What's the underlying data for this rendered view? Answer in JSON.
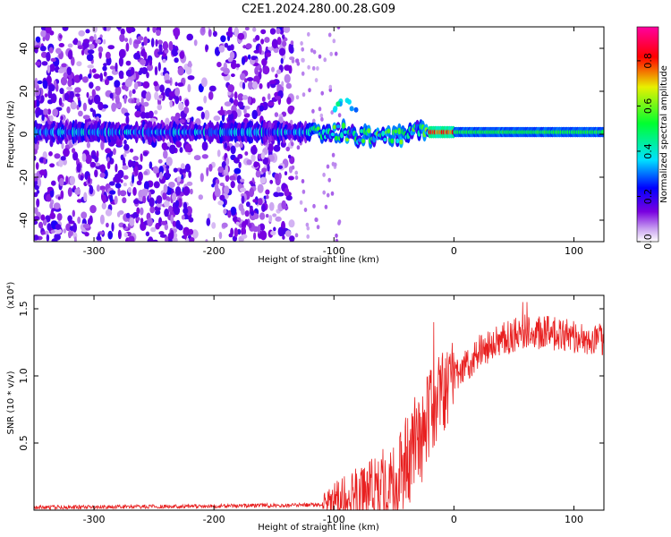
{
  "title": "C2E1.2024.280.00.28.G09",
  "chart_data": [
    {
      "type": "heatmap",
      "xlabel": "Height of straight line (km)",
      "ylabel": "Frequency (Hz)",
      "xlim": [
        -350,
        125
      ],
      "ylim": [
        -50,
        50
      ],
      "xticks": [
        -300,
        -200,
        -100,
        0,
        100
      ],
      "xtick_labels": [
        "-300",
        "-200",
        "-100",
        "0",
        "100"
      ],
      "yticks": [
        -40,
        -20,
        0,
        20,
        40
      ],
      "ytick_labels": [
        "-40",
        "-20",
        "0",
        "20",
        "40"
      ],
      "colorbar": {
        "label": "Normalized spectral amplitude",
        "range": [
          0,
          0.95
        ],
        "ticks": [
          0.0,
          0.2,
          0.4,
          0.6,
          0.8
        ],
        "tick_labels": [
          "0.0",
          "0.2",
          "0.4",
          "0.6",
          "0.8"
        ],
        "colors": [
          "#ffffff",
          "#c8a0f0",
          "#7a00e0",
          "#0000ff",
          "#00e0ff",
          "#00ff30",
          "#e8f000",
          "#ff0000",
          "#ff00a0"
        ]
      },
      "band_center_hz": 1,
      "noise_region_x": [
        -350,
        -135
      ],
      "gap_region_x": [
        -220,
        -195
      ]
    },
    {
      "type": "line",
      "xlabel": "Height of straight line (km)",
      "ylabel": "SNR (10 * v/v)",
      "scale_label": "(x10⁴)",
      "xlim": [
        -350,
        125
      ],
      "ylim": [
        0,
        1.6
      ],
      "xticks": [
        -300,
        -200,
        -100,
        0,
        100
      ],
      "xtick_labels": [
        "-300",
        "-200",
        "-100",
        "0",
        "100"
      ],
      "yticks": [
        0.5,
        1.0,
        1.5
      ],
      "ytick_labels": [
        "0.5",
        "1.0",
        "1.5"
      ],
      "color": "#e82020",
      "trend_x": [
        -350,
        -200,
        -110,
        -90,
        -60,
        -40,
        -25,
        -15,
        0,
        20,
        40,
        60,
        80,
        100,
        125
      ],
      "trend_y": [
        0.02,
        0.03,
        0.04,
        0.08,
        0.18,
        0.35,
        0.6,
        0.8,
        1.0,
        1.17,
        1.27,
        1.33,
        1.32,
        1.3,
        1.28
      ]
    }
  ]
}
